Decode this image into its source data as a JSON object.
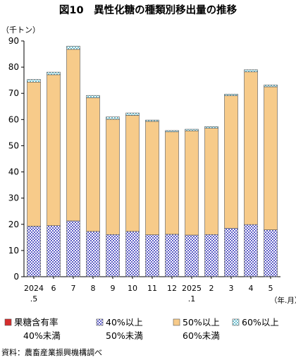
{
  "chart_data": {
    "type": "bar",
    "stacked": true,
    "title": "図10　異性化糖の種類別移出量の推移",
    "y_unit": "（千トン）",
    "x_unit": "（年.月）",
    "source": "資料：農畜産業振興機構調べ",
    "ylim": [
      0,
      90
    ],
    "y_ticks": [
      0,
      10,
      20,
      30,
      40,
      50,
      60,
      70,
      80,
      90
    ],
    "categories": [
      [
        "2024",
        ".5"
      ],
      [
        "6"
      ],
      [
        "7"
      ],
      [
        "8"
      ],
      [
        "9"
      ],
      [
        "10"
      ],
      [
        "11"
      ],
      [
        "12"
      ],
      [
        "2025",
        ".1"
      ],
      [
        "2"
      ],
      [
        "3"
      ],
      [
        "4"
      ],
      [
        "5"
      ]
    ],
    "series": [
      {
        "legend": [
          "果糖含有率",
          "40%未満"
        ],
        "color": "#d62d2d",
        "pattern": "solid",
        "values": [
          0.1,
          0.1,
          0.1,
          0.1,
          0.1,
          0.1,
          0.1,
          0.1,
          0.1,
          0.1,
          0.1,
          0.1,
          0.1
        ]
      },
      {
        "legend": [
          "40%以上",
          "50%未満"
        ],
        "color": "#8a8ad8",
        "pattern": "dots",
        "values": [
          19.2,
          19.4,
          21.2,
          17.2,
          16.0,
          17.2,
          15.9,
          16.1,
          15.8,
          16.0,
          18.4,
          19.8,
          17.8
        ]
      },
      {
        "legend": [
          "50%以上",
          "60%未満"
        ],
        "color": "#f7cb8a",
        "pattern": "solid",
        "values": [
          55.0,
          57.6,
          65.5,
          51.0,
          44.0,
          44.3,
          43.3,
          39.1,
          39.8,
          40.6,
          50.6,
          58.3,
          54.6
        ]
      },
      {
        "legend": [
          "60%以上",
          ""
        ],
        "color": "#8fd0dc",
        "pattern": "checker",
        "values": [
          1.0,
          1.0,
          1.2,
          0.9,
          0.9,
          0.9,
          0.5,
          0.5,
          0.6,
          0.6,
          0.6,
          0.8,
          0.7
        ]
      }
    ]
  }
}
